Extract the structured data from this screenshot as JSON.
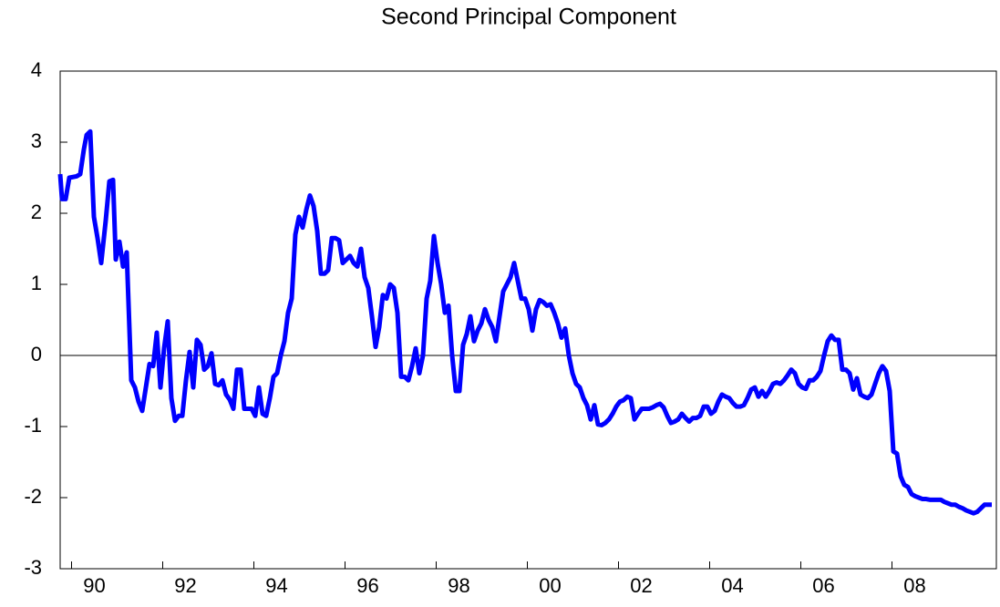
{
  "chart_data": {
    "type": "line",
    "title": "Second Principal Component",
    "x": [
      1989.75,
      1989.79,
      1989.87,
      1989.95,
      1990.11,
      1990.19,
      1990.27,
      1990.33,
      1990.41,
      1990.49,
      1990.57,
      1990.65,
      1990.75,
      1990.83,
      1990.91,
      1990.97,
      1991.05,
      1991.13,
      1991.21,
      1991.31,
      1991.39,
      1991.47,
      1991.55,
      1991.63,
      1991.71,
      1991.79,
      1991.87,
      1991.95,
      1992.03,
      1992.11,
      1992.19,
      1992.27,
      1992.35,
      1992.43,
      1992.51,
      1992.59,
      1992.67,
      1992.75,
      1992.83,
      1992.91,
      1992.99,
      1993.07,
      1993.15,
      1993.23,
      1993.31,
      1993.39,
      1993.47,
      1993.55,
      1993.63,
      1993.71,
      1993.79,
      1993.87,
      1993.95,
      1994.03,
      1994.11,
      1994.19,
      1994.27,
      1994.35,
      1994.43,
      1994.51,
      1994.59,
      1994.67,
      1994.75,
      1994.83,
      1994.91,
      1994.99,
      1995.07,
      1995.15,
      1995.23,
      1995.31,
      1995.39,
      1995.47,
      1995.55,
      1995.63,
      1995.71,
      1995.79,
      1995.87,
      1995.95,
      1996.03,
      1996.11,
      1996.19,
      1996.27,
      1996.35,
      1996.43,
      1996.51,
      1996.59,
      1996.67,
      1996.75,
      1996.83,
      1996.91,
      1996.99,
      1997.07,
      1997.15,
      1997.23,
      1997.31,
      1997.39,
      1997.47,
      1997.55,
      1997.63,
      1997.71,
      1997.79,
      1997.87,
      1997.95,
      1998.03,
      1998.11,
      1998.19,
      1998.27,
      1998.35,
      1998.43,
      1998.51,
      1998.59,
      1998.67,
      1998.75,
      1998.83,
      1998.91,
      1998.99,
      1999.07,
      1999.15,
      1999.23,
      1999.31,
      1999.39,
      1999.47,
      1999.55,
      1999.63,
      1999.71,
      1999.79,
      1999.87,
      1999.95,
      2000.03,
      2000.11,
      2000.19,
      2000.27,
      2000.35,
      2000.43,
      2000.51,
      2000.59,
      2000.67,
      2000.75,
      2000.83,
      2000.91,
      2000.99,
      2001.07,
      2001.15,
      2001.23,
      2001.31,
      2001.39,
      2001.47,
      2001.55,
      2001.63,
      2001.71,
      2001.79,
      2001.87,
      2001.95,
      2002.03,
      2002.11,
      2002.19,
      2002.27,
      2002.35,
      2002.43,
      2002.51,
      2002.59,
      2002.67,
      2002.75,
      2002.83,
      2002.91,
      2002.99,
      2003.07,
      2003.15,
      2003.23,
      2003.31,
      2003.39,
      2003.47,
      2003.55,
      2003.63,
      2003.71,
      2003.79,
      2003.87,
      2003.95,
      2004.03,
      2004.11,
      2004.19,
      2004.27,
      2004.35,
      2004.43,
      2004.51,
      2004.59,
      2004.67,
      2004.75,
      2004.83,
      2004.91,
      2004.99,
      2005.07,
      2005.15,
      2005.23,
      2005.31,
      2005.39,
      2005.47,
      2005.55,
      2005.63,
      2005.71,
      2005.79,
      2005.87,
      2005.95,
      2006.03,
      2006.11,
      2006.19,
      2006.27,
      2006.35,
      2006.43,
      2006.51,
      2006.59,
      2006.67,
      2006.75,
      2006.83,
      2006.91,
      2006.99,
      2007.07,
      2007.15,
      2007.23,
      2007.31,
      2007.39,
      2007.47,
      2007.55,
      2007.63,
      2007.71,
      2007.79,
      2007.87,
      2007.95,
      2008.03,
      2008.11,
      2008.19,
      2008.27,
      2008.35,
      2008.43,
      2008.51,
      2008.59,
      2008.67,
      2008.75,
      2008.83,
      2008.91,
      2008.99,
      2009.07,
      2009.15,
      2009.23,
      2009.31,
      2009.39,
      2009.47,
      2009.55,
      2009.63,
      2009.71,
      2009.79,
      2009.87,
      2009.95,
      2010.03,
      2010.11,
      2010.19
    ],
    "series": [
      {
        "color": "#0000ff",
        "values": [
          2.55,
          2.2,
          2.2,
          2.5,
          2.52,
          2.55,
          2.9,
          3.1,
          3.15,
          1.95,
          1.65,
          1.3,
          1.9,
          2.45,
          2.47,
          1.35,
          1.6,
          1.25,
          1.45,
          -0.35,
          -0.45,
          -0.65,
          -0.78,
          -0.45,
          -0.12,
          -0.15,
          0.32,
          -0.45,
          0.1,
          0.48,
          -0.6,
          -0.92,
          -0.85,
          -0.85,
          -0.35,
          0.05,
          -0.45,
          0.22,
          0.15,
          -0.2,
          -0.15,
          0.03,
          -0.4,
          -0.42,
          -0.35,
          -0.55,
          -0.62,
          -0.75,
          -0.2,
          -0.2,
          -0.75,
          -0.75,
          -0.75,
          -0.85,
          -0.45,
          -0.82,
          -0.85,
          -0.6,
          -0.3,
          -0.25,
          0.0,
          0.2,
          0.6,
          0.8,
          1.7,
          1.95,
          1.8,
          2.05,
          2.25,
          2.1,
          1.75,
          1.15,
          1.15,
          1.2,
          1.65,
          1.65,
          1.62,
          1.3,
          1.35,
          1.4,
          1.3,
          1.25,
          1.5,
          1.1,
          0.95,
          0.55,
          0.12,
          0.4,
          0.85,
          0.8,
          1.0,
          0.95,
          0.6,
          -0.3,
          -0.3,
          -0.35,
          -0.15,
          0.1,
          -0.25,
          0.0,
          0.8,
          1.05,
          1.68,
          1.3,
          1.0,
          0.6,
          0.7,
          0.0,
          -0.5,
          -0.5,
          0.15,
          0.3,
          0.55,
          0.2,
          0.35,
          0.45,
          0.65,
          0.5,
          0.4,
          0.2,
          0.55,
          0.9,
          1.0,
          1.1,
          1.3,
          1.05,
          0.8,
          0.8,
          0.65,
          0.35,
          0.65,
          0.78,
          0.75,
          0.7,
          0.72,
          0.6,
          0.45,
          0.25,
          0.38,
          0.0,
          -0.25,
          -0.4,
          -0.45,
          -0.6,
          -0.7,
          -0.9,
          -0.7,
          -0.97,
          -0.98,
          -0.95,
          -0.9,
          -0.82,
          -0.72,
          -0.65,
          -0.63,
          -0.58,
          -0.6,
          -0.9,
          -0.82,
          -0.75,
          -0.75,
          -0.75,
          -0.73,
          -0.7,
          -0.68,
          -0.73,
          -0.85,
          -0.95,
          -0.93,
          -0.9,
          -0.82,
          -0.88,
          -0.93,
          -0.88,
          -0.88,
          -0.85,
          -0.72,
          -0.72,
          -0.82,
          -0.78,
          -0.65,
          -0.55,
          -0.58,
          -0.6,
          -0.67,
          -0.72,
          -0.72,
          -0.7,
          -0.6,
          -0.48,
          -0.45,
          -0.58,
          -0.5,
          -0.58,
          -0.5,
          -0.4,
          -0.38,
          -0.4,
          -0.35,
          -0.28,
          -0.2,
          -0.25,
          -0.4,
          -0.45,
          -0.47,
          -0.35,
          -0.35,
          -0.3,
          -0.22,
          0.0,
          0.2,
          0.28,
          0.22,
          0.22,
          -0.2,
          -0.2,
          -0.25,
          -0.48,
          -0.32,
          -0.55,
          -0.58,
          -0.6,
          -0.55,
          -0.4,
          -0.25,
          -0.15,
          -0.22,
          -0.5,
          -1.35,
          -1.38,
          -1.7,
          -1.82,
          -1.85,
          -1.95,
          -1.98,
          -2.0,
          -2.02,
          -2.02,
          -2.03,
          -2.03,
          -2.03,
          -2.03,
          -2.06,
          -2.08,
          -2.1,
          -2.1,
          -2.13,
          -2.15,
          -2.18,
          -2.2,
          -2.22,
          -2.2,
          -2.15,
          -2.1,
          -2.1,
          -2.1
        ]
      }
    ],
    "xlim": [
      1989.75,
      2010.29
    ],
    "xticks": [
      {
        "value": 1990,
        "label": "90"
      },
      {
        "value": 1992,
        "label": "92"
      },
      {
        "value": 1994,
        "label": "94"
      },
      {
        "value": 1996,
        "label": "96"
      },
      {
        "value": 1998,
        "label": "98"
      },
      {
        "value": 2000,
        "label": "00"
      },
      {
        "value": 2002,
        "label": "02"
      },
      {
        "value": 2004,
        "label": "04"
      },
      {
        "value": 2006,
        "label": "06"
      },
      {
        "value": 2008,
        "label": "08"
      }
    ],
    "ylim": [
      -3,
      4
    ],
    "yticks": [
      -3,
      -2,
      -1,
      0,
      1,
      2,
      3,
      4
    ],
    "zero_line": true
  }
}
